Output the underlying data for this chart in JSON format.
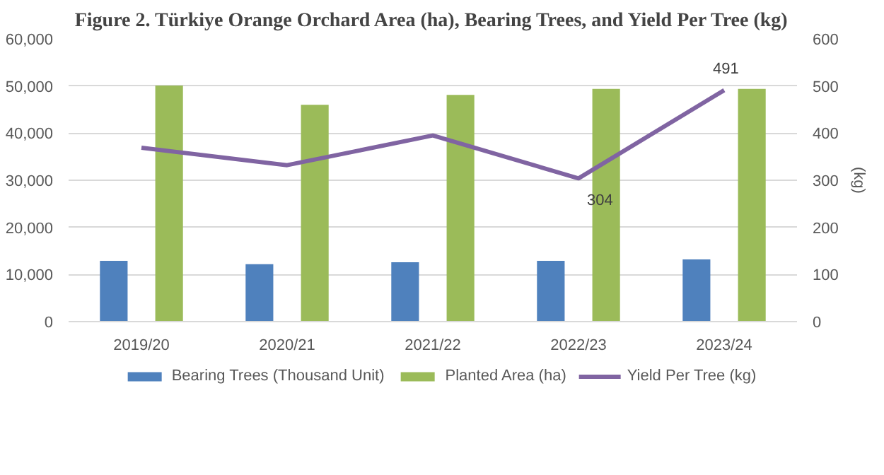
{
  "chart_data": {
    "type": "bar",
    "title": "Figure 2. Türkiye Orange Orchard Area (ha), Bearing Trees, and Yield Per Tree (kg)",
    "y2label": "(kg)",
    "categories": [
      "2019/20",
      "2020/21",
      "2021/22",
      "2022/23",
      "2023/24"
    ],
    "series": [
      {
        "name": "Bearing Trees (Thousand Unit)",
        "color": "#4f81bd",
        "values": [
          12900,
          12200,
          12600,
          12900,
          13200
        ]
      },
      {
        "name": "Planted Area (ha)",
        "color": "#9bbb59",
        "values": [
          50100,
          46000,
          48100,
          49400,
          49400
        ]
      },
      {
        "name": "Yield Per Tree (kg)",
        "color": "#8064a2",
        "type": "line",
        "axis": "y2",
        "values": [
          369,
          332,
          395,
          304,
          491
        ],
        "value_labels": [
          null,
          null,
          null,
          "304",
          "491"
        ]
      }
    ],
    "ylim": [
      0,
      60000
    ],
    "yticks": [
      {
        "value": 0,
        "label": "0"
      },
      {
        "value": 10000,
        "label": "10,000"
      },
      {
        "value": 20000,
        "label": "20,000"
      },
      {
        "value": 30000,
        "label": "30,000"
      },
      {
        "value": 40000,
        "label": "40,000"
      },
      {
        "value": 50000,
        "label": "50,000"
      },
      {
        "value": 60000,
        "label": "60,000"
      }
    ],
    "y2lim": [
      0,
      600
    ],
    "y2ticks": [
      0,
      100,
      200,
      300,
      400,
      500,
      600
    ],
    "grid": "y",
    "legend": "bottom"
  }
}
